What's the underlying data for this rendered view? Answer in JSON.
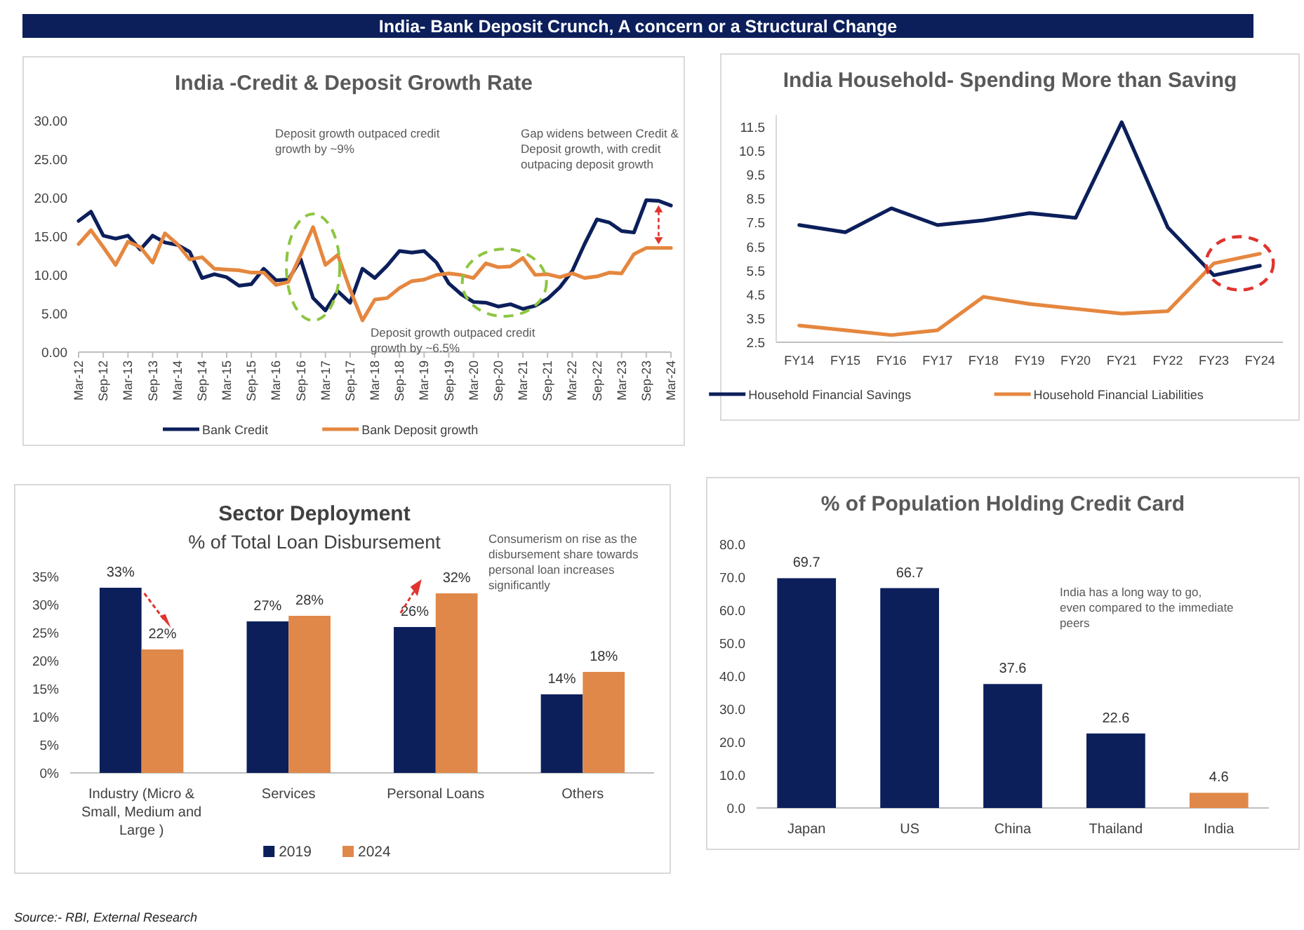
{
  "chart_data": [
    {
      "type": "other",
      "title": "India- Bank Deposit Crunch, A concern or a Structural Change",
      "color": "#0c1f5b"
    },
    {
      "type": "line",
      "title": "India -Credit & Deposit Growth Rate",
      "categories": [
        "Mar-12",
        null,
        "Sep-12",
        null,
        "Mar-13",
        null,
        "Sep-13",
        null,
        "Mar-14",
        null,
        "Sep-14",
        null,
        "Mar-15",
        null,
        "Sep-15",
        null,
        "Mar-16",
        null,
        "Sep-16",
        null,
        "Mar-17",
        null,
        "Sep-17",
        null,
        "Mar-18",
        null,
        "Sep-18",
        null,
        "Mar-19",
        null,
        "Sep-19",
        null,
        "Mar-20",
        null,
        "Sep-20",
        null,
        "Mar-21",
        null,
        "Sep-21",
        null,
        "Mar-22",
        null,
        "Sep-22",
        null,
        "Mar-23",
        null,
        "Sep-23",
        null,
        "Mar-24"
      ],
      "series": [
        {
          "name": "Bank Credit",
          "color": "#0c1f5b",
          "values": [
            17.0,
            18.2,
            15.1,
            14.7,
            15.1,
            13.3,
            15.1,
            14.2,
            13.9,
            13.0,
            9.6,
            10.1,
            9.7,
            8.6,
            8.8,
            10.8,
            9.3,
            9.4,
            12.0,
            7.0,
            5.4,
            7.9,
            6.4,
            10.8,
            9.6,
            11.2,
            13.1,
            12.9,
            13.1,
            11.6,
            8.9,
            7.5,
            6.5,
            6.4,
            5.9,
            6.2,
            5.6,
            6.0,
            6.9,
            8.4,
            10.5,
            14.0,
            17.2,
            16.8,
            15.7,
            15.5,
            19.7,
            19.6,
            19.0
          ]
        },
        {
          "name": "Bank Deposit growth",
          "color": "#e5873f",
          "values": [
            14.0,
            15.8,
            13.6,
            11.3,
            14.3,
            13.6,
            11.6,
            15.4,
            14.0,
            12.0,
            12.3,
            10.8,
            10.7,
            10.6,
            10.3,
            10.3,
            8.7,
            9.1,
            12.6,
            16.2,
            11.3,
            12.6,
            8.1,
            4.1,
            6.8,
            7.0,
            8.3,
            9.2,
            9.4,
            10.0,
            10.2,
            10.0,
            9.6,
            11.5,
            11.0,
            11.1,
            12.2,
            10.0,
            10.1,
            9.7,
            10.2,
            9.6,
            9.8,
            10.3,
            10.2,
            12.7,
            13.5,
            13.5,
            13.5
          ]
        }
      ],
      "ylim": [
        0,
        30
      ],
      "yticks": [
        {
          "value": 0,
          "label": "0.00"
        },
        {
          "value": 5,
          "label": "5.00"
        },
        {
          "value": 10,
          "label": "10.00"
        },
        {
          "value": 15,
          "label": "15.00"
        },
        {
          "value": 20,
          "label": "20.00"
        },
        {
          "value": 25,
          "label": "25.00"
        },
        {
          "value": 30,
          "label": "30.00"
        }
      ],
      "legend": "bottom",
      "marker": "none",
      "line_style": "solid",
      "annotations": [
        "Deposit growth outpaced credit growth by ~9%",
        "Deposit growth outpaced credit growth by ~6.5%",
        "Gap widens between Credit & Deposit growth, with credit outpacing deposit growth"
      ]
    },
    {
      "type": "line",
      "title": "India Household- Spending More than Saving",
      "categories": [
        "FY14",
        "FY15",
        "FY16",
        "FY17",
        "FY18",
        "FY19",
        "FY20",
        "FY21",
        "FY22",
        "FY23",
        "FY24"
      ],
      "series": [
        {
          "name": "Household Financial Savings",
          "color": "#0c1f5b",
          "values": [
            7.4,
            7.1,
            8.1,
            7.4,
            7.6,
            7.9,
            7.7,
            11.7,
            7.3,
            5.3,
            5.7
          ]
        },
        {
          "name": "Household Financial Liabilities",
          "color": "#e5873f",
          "values": [
            3.2,
            3.0,
            2.8,
            3.0,
            4.4,
            4.1,
            3.9,
            3.7,
            3.8,
            5.8,
            6.2
          ]
        }
      ],
      "ylim": [
        2.5,
        12
      ],
      "yticks": [
        2.5,
        3.5,
        4.5,
        5.5,
        6.5,
        7.5,
        8.5,
        9.5,
        10.5,
        11.5
      ],
      "legend": "bottom",
      "marker": "none",
      "line_style": "solid"
    },
    {
      "type": "bar",
      "title": "Sector Deployment",
      "subtitle": "% of Total Loan Disbursement",
      "categories": [
        "Industry (Micro & Small, Medium and Large )",
        "Services",
        "Personal Loans",
        "Others"
      ],
      "series": [
        {
          "name": "2019",
          "color": "#0c1f5b",
          "values": [
            33,
            27,
            26,
            14
          ],
          "value_labels": [
            "33%",
            "27%",
            "26%",
            "14%"
          ]
        },
        {
          "name": "2024",
          "color": "#e0884a",
          "values": [
            22,
            28,
            32,
            18
          ],
          "value_labels": [
            "22%",
            "28%",
            "32%",
            "18%"
          ]
        }
      ],
      "ylim": [
        0,
        35
      ],
      "yticks": [
        {
          "value": 0,
          "label": "0%"
        },
        {
          "value": 5,
          "label": "5%"
        },
        {
          "value": 10,
          "label": "10%"
        },
        {
          "value": 15,
          "label": "15%"
        },
        {
          "value": 20,
          "label": "20%"
        },
        {
          "value": 25,
          "label": "25%"
        },
        {
          "value": 30,
          "label": "30%"
        },
        {
          "value": 35,
          "label": "35%"
        }
      ],
      "legend": "bottom",
      "annotations": [
        "Consumerism on rise as the disbursement share towards personal loan increases significantly"
      ]
    },
    {
      "type": "bar",
      "title": "% of Population Holding Credit Card",
      "categories": [
        "Japan",
        "US",
        "China",
        "Thailand",
        "India"
      ],
      "values": [
        69.7,
        66.7,
        37.6,
        22.6,
        4.6
      ],
      "colors": [
        "#0c1f5b",
        "#0c1f5b",
        "#0c1f5b",
        "#0c1f5b",
        "#e0884a"
      ],
      "ylim": [
        0,
        80
      ],
      "yticks": [
        {
          "value": 0,
          "label": "0.0"
        },
        {
          "value": 10,
          "label": "10.0"
        },
        {
          "value": 20,
          "label": "20.0"
        },
        {
          "value": 30,
          "label": "30.0"
        },
        {
          "value": 40,
          "label": "40.0"
        },
        {
          "value": 50,
          "label": "50.0"
        },
        {
          "value": 60,
          "label": "60.0"
        },
        {
          "value": 70,
          "label": "70.0"
        },
        {
          "value": 80,
          "label": "80.0"
        }
      ],
      "data_labels": true,
      "annotations": [
        "India has a long way to go, even compared to the immediate peers"
      ]
    },
    {
      "type": "other",
      "annotations": [
        "Source:- RBI, External Research"
      ]
    }
  ]
}
